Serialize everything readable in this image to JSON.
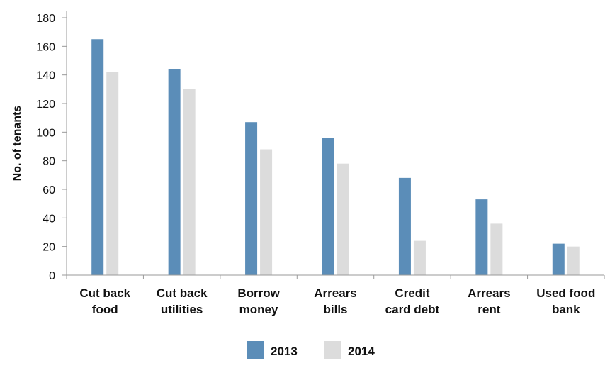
{
  "chart_data": {
    "type": "bar",
    "title": "",
    "xlabel": "",
    "ylabel": "No. of tenants",
    "ylim": [
      0,
      180
    ],
    "yticks": [
      0,
      20,
      40,
      60,
      80,
      100,
      120,
      140,
      160,
      180
    ],
    "grid": false,
    "legend_position": "bottom",
    "categories": [
      [
        "Cut back",
        "food"
      ],
      [
        "Cut back",
        "utilities"
      ],
      [
        "Borrow",
        "money"
      ],
      [
        "Arrears",
        "bills"
      ],
      [
        "Credit",
        "card debt"
      ],
      [
        "Arrears",
        "rent"
      ],
      [
        "Used food",
        "bank"
      ]
    ],
    "series": [
      {
        "name": "2013",
        "color": "#5b8db8",
        "values": [
          165,
          144,
          107,
          96,
          68,
          53,
          22
        ]
      },
      {
        "name": "2014",
        "color": "#dcdcdc",
        "values": [
          142,
          130,
          88,
          78,
          24,
          36,
          20
        ]
      }
    ],
    "axis_color": "#9a9a9a"
  }
}
